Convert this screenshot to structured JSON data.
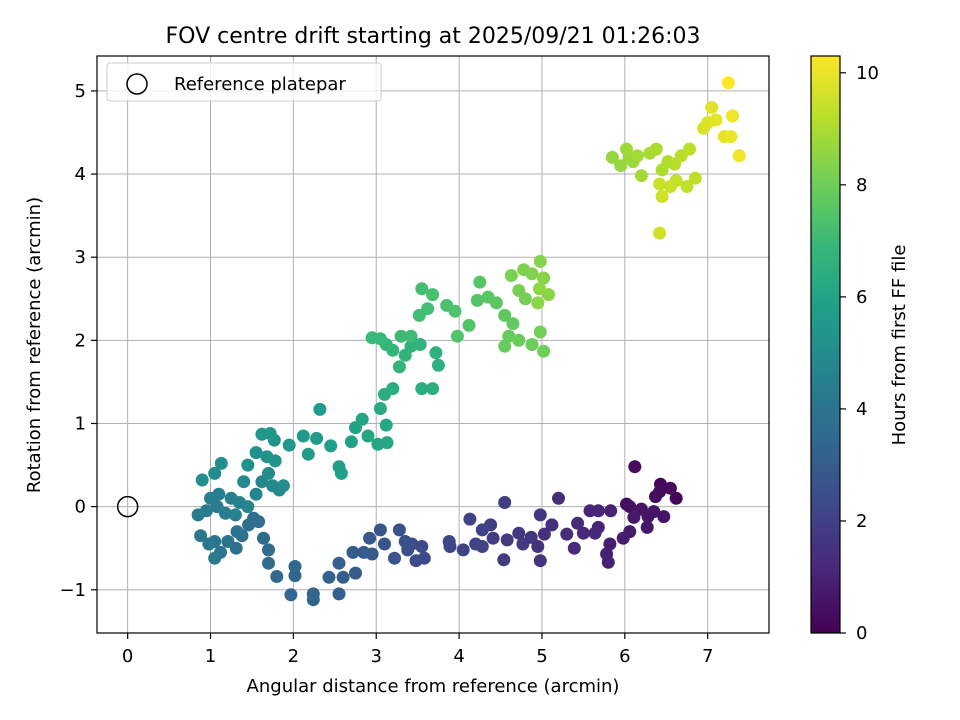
{
  "chart_data": {
    "type": "scatter",
    "title": "FOV centre drift starting at 2025/09/21 01:26:03",
    "xlabel": "Angular distance from reference (arcmin)",
    "ylabel": "Rotation from reference (arcmin)",
    "xlim": [
      -0.37,
      7.74
    ],
    "ylim": [
      -1.52,
      5.42
    ],
    "xticks": [
      0,
      1,
      2,
      3,
      4,
      5,
      6,
      7
    ],
    "yticks": [
      -1,
      0,
      1,
      2,
      3,
      4,
      5
    ],
    "grid": true,
    "legend": {
      "position": "top-left",
      "entries": [
        "Reference platepar"
      ]
    },
    "reference_point": {
      "x": 0,
      "y": 0,
      "label": "Reference platepar"
    },
    "colorbar": {
      "label": "Hours from first FF file",
      "range": [
        0,
        10.3
      ],
      "ticks": [
        0,
        2,
        4,
        6,
        8,
        10
      ],
      "colormap": "viridis"
    },
    "points": [
      [
        6.62,
        0.1,
        0.1
      ],
      [
        6.43,
        0.27,
        0.2
      ],
      [
        6.55,
        0.22,
        0.25
      ],
      [
        6.42,
        0.18,
        0.3
      ],
      [
        6.12,
        0.48,
        0.3
      ],
      [
        6.37,
        0.12,
        0.35
      ],
      [
        6.02,
        0.03,
        0.4
      ],
      [
        6.06,
        0.0,
        0.45
      ],
      [
        6.2,
        -0.03,
        0.5
      ],
      [
        6.28,
        -0.12,
        0.55
      ],
      [
        6.47,
        -0.12,
        0.6
      ],
      [
        6.35,
        -0.06,
        0.6
      ],
      [
        6.27,
        -0.25,
        0.65
      ],
      [
        6.11,
        -0.13,
        0.7
      ],
      [
        6.06,
        -0.3,
        0.75
      ],
      [
        5.98,
        -0.38,
        0.8
      ],
      [
        5.82,
        -0.45,
        0.85
      ],
      [
        5.78,
        -0.57,
        0.9
      ],
      [
        5.8,
        -0.67,
        0.95
      ],
      [
        5.68,
        -0.25,
        1.0
      ],
      [
        5.83,
        -0.05,
        1.0
      ],
      [
        5.68,
        -0.05,
        1.05
      ],
      [
        5.58,
        -0.05,
        1.1
      ],
      [
        5.64,
        -0.32,
        1.15
      ],
      [
        5.5,
        -0.32,
        1.2
      ],
      [
        5.39,
        -0.5,
        1.25
      ],
      [
        5.43,
        -0.2,
        1.3
      ],
      [
        5.3,
        -0.33,
        1.35
      ],
      [
        5.2,
        0.1,
        1.35
      ],
      [
        5.12,
        -0.22,
        1.4
      ],
      [
        5.03,
        -0.33,
        1.45
      ],
      [
        4.95,
        -0.48,
        1.5
      ],
      [
        4.98,
        -0.65,
        1.55
      ],
      [
        4.87,
        -0.37,
        1.6
      ],
      [
        4.98,
        -0.1,
        1.65
      ],
      [
        4.72,
        -0.32,
        1.7
      ],
      [
        4.77,
        -0.45,
        1.75
      ],
      [
        4.58,
        -0.4,
        1.8
      ],
      [
        4.54,
        -0.64,
        1.85
      ],
      [
        4.55,
        0.05,
        1.85
      ],
      [
        4.41,
        -0.38,
        1.9
      ],
      [
        4.38,
        -0.22,
        1.95
      ],
      [
        4.28,
        -0.28,
        2.0
      ],
      [
        4.28,
        -0.48,
        2.05
      ],
      [
        4.2,
        -0.45,
        2.1
      ],
      [
        4.13,
        -0.15,
        2.1
      ],
      [
        4.05,
        -0.52,
        2.15
      ],
      [
        3.89,
        -0.48,
        2.2
      ],
      [
        3.88,
        -0.42,
        2.25
      ],
      [
        3.58,
        -0.62,
        2.3
      ],
      [
        3.55,
        -0.48,
        2.35
      ],
      [
        3.48,
        -0.65,
        2.4
      ],
      [
        3.43,
        -0.45,
        2.45
      ],
      [
        3.38,
        -0.52,
        2.5
      ],
      [
        3.35,
        -0.42,
        2.55
      ],
      [
        3.28,
        -0.28,
        2.6
      ],
      [
        3.22,
        -0.62,
        2.65
      ],
      [
        3.1,
        -0.45,
        2.7
      ],
      [
        3.05,
        -0.28,
        2.75
      ],
      [
        2.95,
        -0.57,
        2.8
      ],
      [
        2.92,
        -0.38,
        2.85
      ],
      [
        2.85,
        -0.55,
        2.9
      ],
      [
        2.75,
        -0.8,
        2.95
      ],
      [
        2.72,
        -0.55,
        3.0
      ],
      [
        2.6,
        -0.85,
        3.05
      ],
      [
        2.55,
        -0.68,
        3.1
      ],
      [
        2.55,
        -1.05,
        3.15
      ],
      [
        2.43,
        -0.85,
        3.2
      ],
      [
        2.24,
        -1.12,
        3.25
      ],
      [
        2.24,
        -1.05,
        3.3
      ],
      [
        1.97,
        -1.06,
        3.35
      ],
      [
        2.02,
        -0.83,
        3.4
      ],
      [
        2.02,
        -0.72,
        3.45
      ],
      [
        1.8,
        -0.84,
        3.5
      ],
      [
        1.7,
        -0.68,
        3.55
      ],
      [
        1.7,
        -0.52,
        3.6
      ],
      [
        1.64,
        -0.38,
        3.6
      ],
      [
        1.58,
        -0.18,
        3.65
      ],
      [
        1.52,
        -0.14,
        3.7
      ],
      [
        1.46,
        -0.22,
        3.75
      ],
      [
        1.38,
        -0.35,
        3.8
      ],
      [
        1.31,
        -0.5,
        3.85
      ],
      [
        1.32,
        -0.3,
        3.9
      ],
      [
        1.21,
        -0.42,
        3.95
      ],
      [
        1.12,
        -0.55,
        4.0
      ],
      [
        1.05,
        -0.42,
        4.05
      ],
      [
        0.98,
        -0.45,
        4.1
      ],
      [
        0.88,
        -0.35,
        4.15
      ],
      [
        1.05,
        -0.62,
        4.2
      ],
      [
        0.85,
        -0.1,
        4.25
      ],
      [
        0.95,
        -0.05,
        4.3
      ],
      [
        1.08,
        0.0,
        4.3
      ],
      [
        1.18,
        -0.08,
        4.35
      ],
      [
        1.0,
        0.1,
        4.4
      ],
      [
        1.1,
        0.15,
        4.45
      ],
      [
        1.25,
        0.1,
        4.5
      ],
      [
        1.35,
        0.05,
        4.55
      ],
      [
        1.3,
        -0.1,
        4.6
      ],
      [
        1.45,
        0.0,
        4.65
      ],
      [
        1.55,
        0.15,
        4.7
      ],
      [
        1.4,
        0.3,
        4.75
      ],
      [
        1.62,
        0.3,
        4.8
      ],
      [
        1.75,
        0.25,
        4.85
      ],
      [
        1.83,
        0.2,
        4.9
      ],
      [
        1.7,
        0.4,
        4.95
      ],
      [
        1.88,
        0.25,
        5.0
      ],
      [
        1.05,
        0.4,
        5.0
      ],
      [
        0.9,
        0.32,
        5.05
      ],
      [
        1.13,
        0.52,
        5.1
      ],
      [
        1.45,
        0.5,
        5.15
      ],
      [
        1.55,
        0.65,
        5.2
      ],
      [
        1.68,
        0.6,
        5.25
      ],
      [
        1.78,
        0.55,
        5.3
      ],
      [
        1.77,
        0.8,
        5.35
      ],
      [
        1.62,
        0.87,
        5.4
      ],
      [
        1.72,
        0.88,
        5.45
      ],
      [
        1.95,
        0.74,
        5.5
      ],
      [
        2.12,
        0.85,
        5.55
      ],
      [
        2.28,
        0.82,
        5.6
      ],
      [
        2.32,
        1.17,
        5.65
      ],
      [
        2.18,
        0.63,
        5.7
      ],
      [
        2.45,
        0.73,
        5.75
      ],
      [
        2.55,
        0.48,
        5.8
      ],
      [
        2.58,
        0.4,
        5.85
      ],
      [
        2.7,
        0.78,
        5.9
      ],
      [
        2.75,
        0.95,
        5.95
      ],
      [
        2.83,
        1.05,
        6.0
      ],
      [
        2.9,
        0.85,
        6.05
      ],
      [
        3.02,
        0.75,
        6.1
      ],
      [
        3.13,
        0.77,
        6.15
      ],
      [
        3.12,
        0.98,
        6.2
      ],
      [
        3.05,
        1.18,
        6.25
      ],
      [
        3.1,
        1.35,
        6.3
      ],
      [
        3.2,
        1.42,
        6.35
      ],
      [
        3.55,
        1.42,
        6.4
      ],
      [
        3.68,
        1.42,
        6.45
      ],
      [
        3.75,
        1.7,
        6.5
      ],
      [
        3.72,
        1.85,
        6.55
      ],
      [
        3.53,
        1.95,
        6.6
      ],
      [
        3.42,
        1.93,
        6.65
      ],
      [
        3.35,
        1.82,
        6.7
      ],
      [
        3.28,
        1.68,
        6.75
      ],
      [
        3.2,
        1.88,
        6.8
      ],
      [
        3.12,
        1.95,
        6.85
      ],
      [
        3.05,
        2.02,
        6.9
      ],
      [
        2.95,
        2.03,
        6.95
      ],
      [
        3.3,
        2.05,
        7.0
      ],
      [
        3.42,
        2.05,
        7.05
      ],
      [
        3.52,
        2.3,
        7.1
      ],
      [
        3.62,
        2.38,
        7.15
      ],
      [
        3.55,
        2.62,
        7.2
      ],
      [
        3.68,
        2.55,
        7.25
      ],
      [
        3.85,
        2.42,
        7.3
      ],
      [
        3.95,
        2.35,
        7.35
      ],
      [
        3.98,
        2.05,
        7.4
      ],
      [
        4.12,
        2.18,
        7.45
      ],
      [
        4.22,
        2.48,
        7.5
      ],
      [
        4.25,
        2.7,
        7.55
      ],
      [
        4.35,
        2.52,
        7.6
      ],
      [
        4.45,
        2.45,
        7.65
      ],
      [
        4.55,
        2.3,
        7.7
      ],
      [
        4.65,
        2.2,
        7.75
      ],
      [
        4.6,
        2.05,
        7.8
      ],
      [
        4.55,
        1.93,
        7.85
      ],
      [
        4.72,
        2.0,
        7.9
      ],
      [
        4.88,
        1.95,
        7.95
      ],
      [
        5.02,
        1.87,
        8.0
      ],
      [
        4.98,
        2.1,
        8.05
      ],
      [
        4.8,
        2.5,
        8.1
      ],
      [
        4.72,
        2.6,
        8.15
      ],
      [
        4.63,
        2.78,
        8.2
      ],
      [
        4.78,
        2.85,
        8.25
      ],
      [
        4.88,
        2.8,
        8.3
      ],
      [
        4.98,
        2.95,
        8.35
      ],
      [
        5.02,
        2.75,
        8.4
      ],
      [
        5.08,
        2.55,
        8.45
      ],
      [
        4.95,
        2.45,
        8.5
      ],
      [
        4.97,
        2.62,
        8.55
      ],
      [
        5.85,
        4.2,
        8.6
      ],
      [
        5.95,
        4.1,
        8.65
      ],
      [
        6.05,
        4.2,
        8.7
      ],
      [
        6.1,
        4.15,
        8.75
      ],
      [
        6.02,
        4.3,
        8.8
      ],
      [
        6.15,
        4.22,
        8.85
      ],
      [
        6.2,
        3.98,
        8.9
      ],
      [
        6.3,
        4.25,
        8.95
      ],
      [
        6.38,
        4.3,
        9.0
      ],
      [
        6.45,
        4.05,
        9.05
      ],
      [
        6.52,
        4.15,
        9.1
      ],
      [
        6.6,
        4.12,
        9.15
      ],
      [
        6.68,
        4.22,
        9.2
      ],
      [
        6.78,
        4.3,
        9.25
      ],
      [
        6.85,
        3.95,
        9.3
      ],
      [
        6.75,
        3.85,
        9.35
      ],
      [
        6.62,
        3.92,
        9.4
      ],
      [
        6.55,
        3.85,
        9.45
      ],
      [
        6.42,
        3.88,
        9.5
      ],
      [
        6.45,
        3.73,
        9.55
      ],
      [
        6.42,
        3.29,
        9.6
      ],
      [
        6.95,
        4.55,
        9.7
      ],
      [
        7.0,
        4.62,
        9.8
      ],
      [
        7.05,
        4.8,
        9.85
      ],
      [
        7.1,
        4.65,
        9.9
      ],
      [
        7.2,
        4.45,
        9.95
      ],
      [
        7.28,
        4.45,
        10.0
      ],
      [
        7.3,
        4.7,
        10.05
      ],
      [
        7.38,
        4.22,
        10.1
      ],
      [
        7.25,
        5.1,
        10.3
      ]
    ]
  }
}
